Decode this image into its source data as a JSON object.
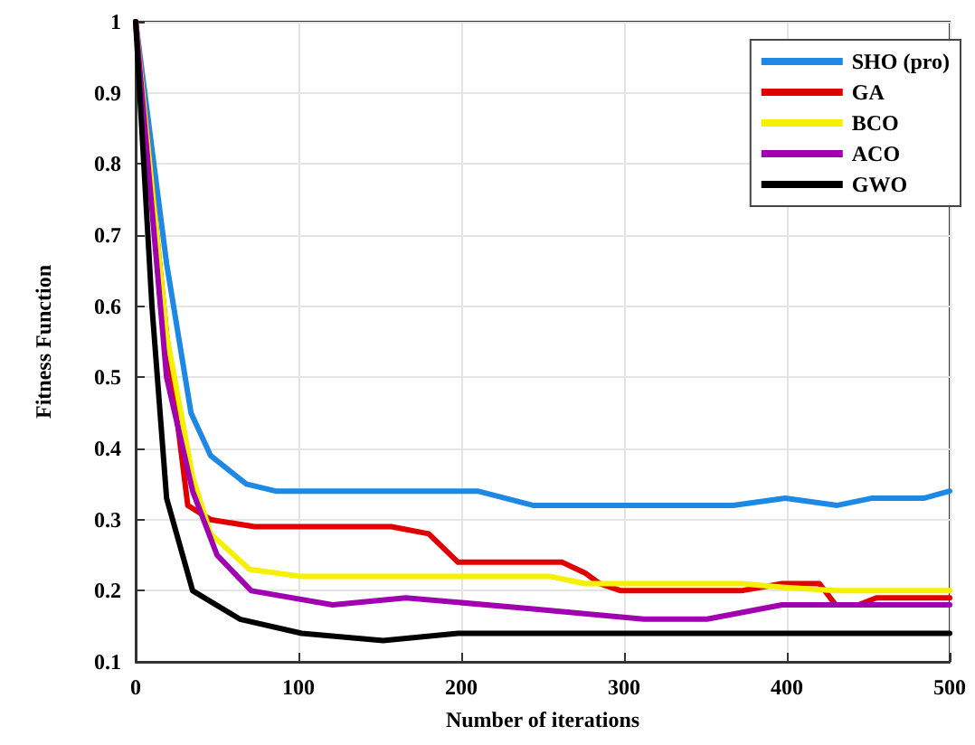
{
  "chart_data": {
    "type": "line",
    "xlabel": "Number of iterations",
    "ylabel": "Fitness Function",
    "xlim": [
      0,
      500
    ],
    "xticks": [
      0,
      100,
      200,
      300,
      400,
      500
    ],
    "ylim": [
      0.1,
      1
    ],
    "yticks": [
      0.1,
      0.2,
      0.3,
      0.4,
      0.5,
      0.6,
      0.7,
      0.8,
      0.9,
      1
    ],
    "grid": true,
    "legend": "top right",
    "marker": "none",
    "line_style": "solid",
    "series": [
      {
        "name": "SHO (pro)",
        "color": "#1e88e5",
        "x": [
          0,
          19,
          34,
          46,
          68,
          86,
          210,
          244,
          367,
          399,
          431,
          452,
          484,
          500
        ],
        "values": [
          1,
          0.66,
          0.45,
          0.39,
          0.35,
          0.34,
          0.34,
          0.32,
          0.32,
          0.33,
          0.32,
          0.33,
          0.33,
          0.34
        ]
      },
      {
        "name": "GA",
        "color": "#e00000",
        "x": [
          0,
          19,
          32,
          46,
          73,
          157,
          180,
          198,
          262,
          276,
          285,
          298,
          372,
          397,
          420,
          430,
          444,
          455,
          500
        ],
        "values": [
          1,
          0.56,
          0.32,
          0.3,
          0.29,
          0.29,
          0.28,
          0.24,
          0.24,
          0.225,
          0.21,
          0.2,
          0.2,
          0.21,
          0.21,
          0.18,
          0.18,
          0.19,
          0.19
        ]
      },
      {
        "name": "BCO",
        "color": "#f5f000",
        "x": [
          0,
          19,
          35,
          46,
          70,
          102,
          255,
          276,
          372,
          397,
          430,
          500
        ],
        "values": [
          1,
          0.56,
          0.36,
          0.28,
          0.23,
          0.22,
          0.22,
          0.21,
          0.21,
          0.205,
          0.2,
          0.2
        ]
      },
      {
        "name": "ACO",
        "color": "#a000b0",
        "x": [
          0,
          19,
          35,
          50,
          71,
          121,
          166,
          241,
          312,
          351,
          397,
          500
        ],
        "values": [
          1,
          0.5,
          0.34,
          0.25,
          0.2,
          0.18,
          0.19,
          0.175,
          0.16,
          0.16,
          0.18,
          0.18
        ]
      },
      {
        "name": "GWO",
        "color": "#000000",
        "x": [
          0,
          10,
          19,
          35,
          64,
          102,
          152,
          198,
          500
        ],
        "values": [
          1,
          0.6,
          0.33,
          0.2,
          0.16,
          0.14,
          0.13,
          0.14,
          0.14
        ]
      }
    ]
  }
}
